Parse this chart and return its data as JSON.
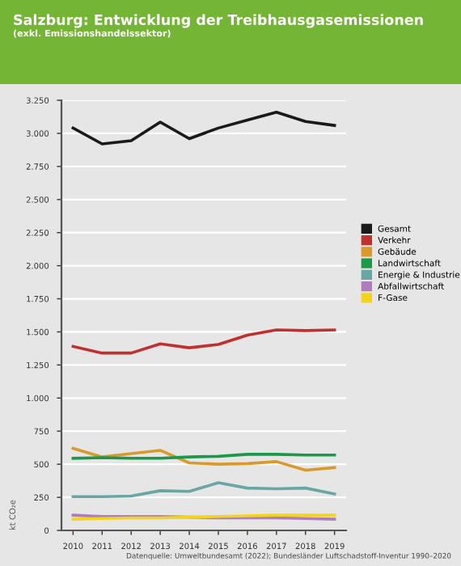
{
  "chart_data": {
    "type": "line",
    "title": "Salzburg: Entwicklung der Treibhausgasemissionen",
    "subtitle": "(exkl. Emissionshandelssektor)",
    "ylabel": "kt CO₂e",
    "categories": [
      "2010",
      "2011",
      "2012",
      "2013",
      "2014",
      "2015",
      "2016",
      "2017",
      "2018",
      "2019"
    ],
    "series": [
      {
        "name": "Gesamt",
        "color": "#1a1a1a",
        "values": [
          3040,
          2920,
          2945,
          3085,
          2960,
          3040,
          3100,
          3160,
          3090,
          3060
        ]
      },
      {
        "name": "Verkehr",
        "color": "#c0302e",
        "values": [
          1390,
          1340,
          1340,
          1410,
          1380,
          1405,
          1475,
          1515,
          1510,
          1515
        ]
      },
      {
        "name": "Gebäude",
        "color": "#d99a2b",
        "values": [
          620,
          555,
          580,
          605,
          510,
          500,
          505,
          520,
          455,
          475
        ]
      },
      {
        "name": "Landwirtschaft",
        "color": "#1a9a48",
        "values": [
          545,
          550,
          545,
          545,
          555,
          560,
          575,
          575,
          570,
          570
        ]
      },
      {
        "name": "Energie & Industrie",
        "color": "#6aa6a4",
        "values": [
          255,
          255,
          260,
          300,
          295,
          360,
          320,
          315,
          320,
          275
        ]
      },
      {
        "name": "Abfallwirtschaft",
        "color": "#b07cc0",
        "values": [
          115,
          105,
          105,
          105,
          100,
          95,
          95,
          95,
          90,
          85
        ]
      },
      {
        "name": "F-Gase",
        "color": "#f5d31a",
        "values": [
          85,
          90,
          95,
          95,
          100,
          105,
          110,
          115,
          115,
          115
        ]
      }
    ],
    "ylim": [
      0,
      3250
    ],
    "yticks": [
      0,
      {
        "value": 250,
        "label": "250"
      },
      {
        "value": 500,
        "label": "500"
      },
      {
        "value": 750,
        "label": "750"
      },
      {
        "value": 1000,
        "label": "1.000"
      },
      {
        "value": 1250,
        "label": "1.250"
      },
      {
        "value": 1500,
        "label": "1.500"
      },
      {
        "value": 1750,
        "label": "1.750"
      },
      {
        "value": 2000,
        "label": "2.000"
      },
      {
        "value": 2250,
        "label": "2.250"
      },
      {
        "value": 2500,
        "label": "2.500"
      },
      {
        "value": 2750,
        "label": "2.750"
      },
      {
        "value": 3000,
        "label": "3.000"
      },
      {
        "value": 3250,
        "label": "3.250"
      }
    ],
    "grid": "y",
    "legend": "right",
    "marker": "none",
    "line_style": "solid",
    "annotations": [
      "Datenquelle: Umweltbundesamt (2022); Bundesländer Luftschadstoff-Inventur 1990–2020"
    ]
  }
}
